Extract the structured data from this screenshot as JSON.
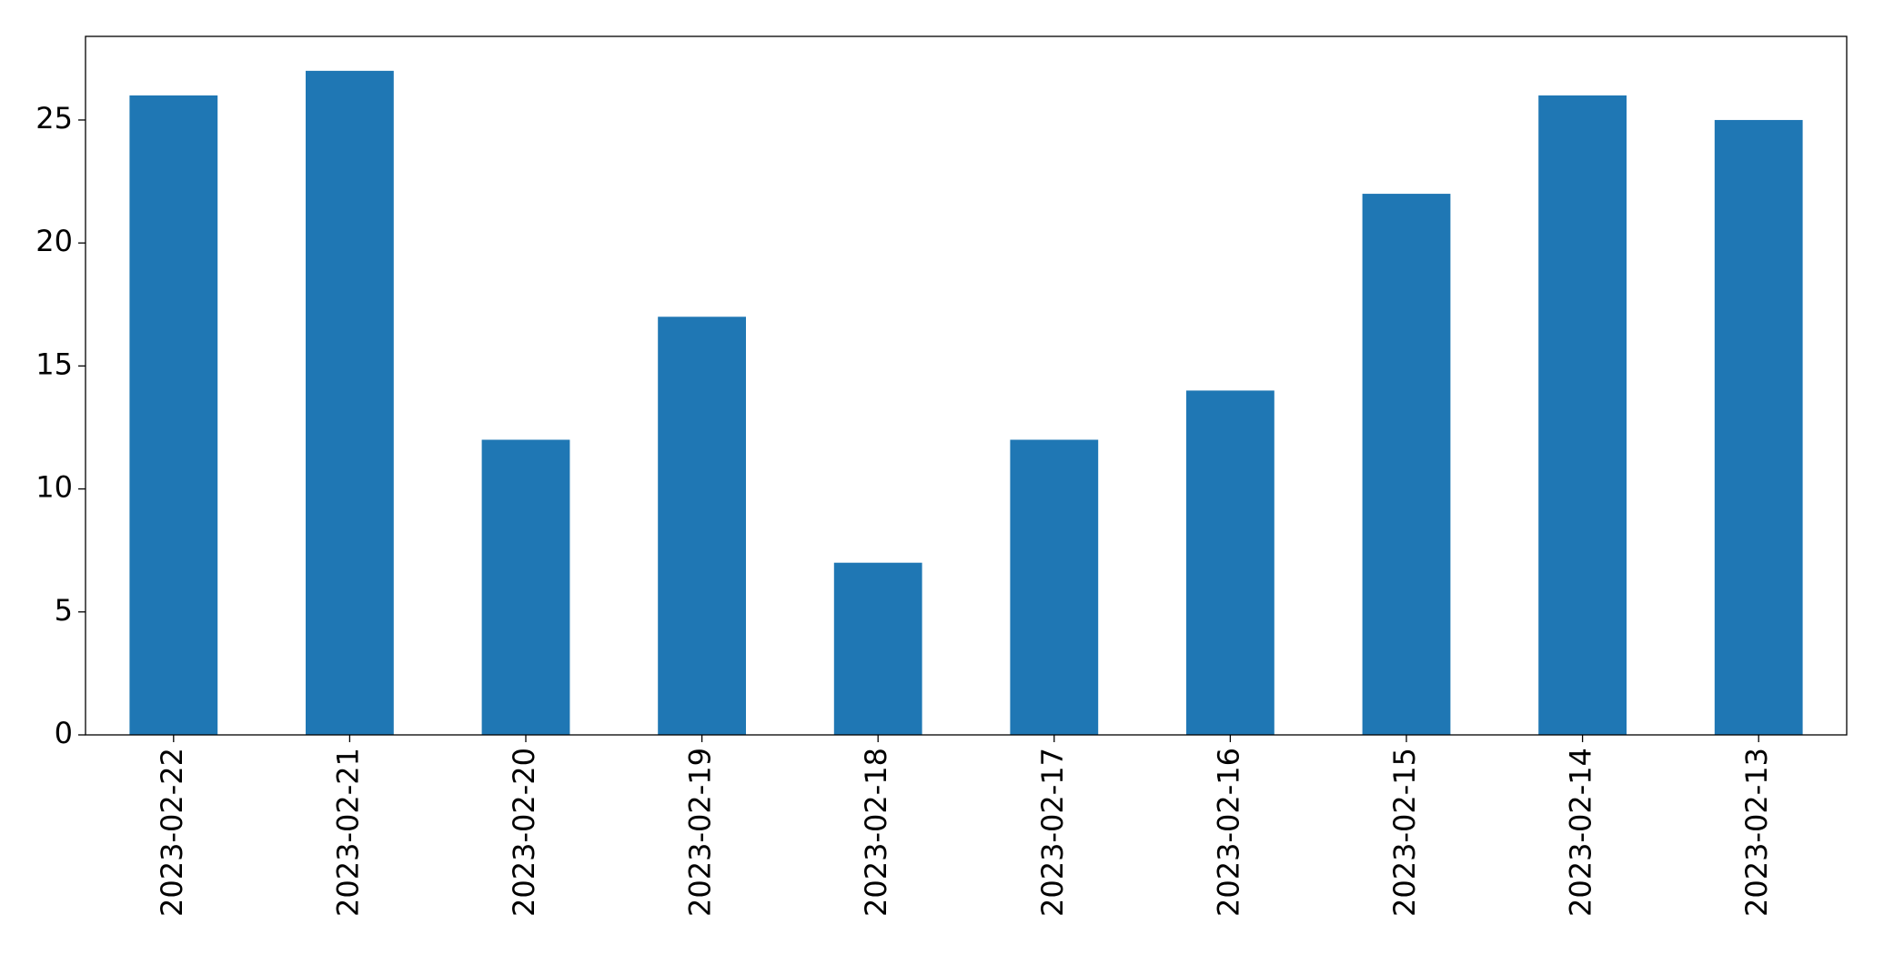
{
  "chart_data": {
    "type": "bar",
    "categories": [
      "2023-02-22",
      "2023-02-21",
      "2023-02-20",
      "2023-02-19",
      "2023-02-18",
      "2023-02-17",
      "2023-02-16",
      "2023-02-15",
      "2023-02-14",
      "2023-02-13"
    ],
    "values": [
      26,
      27,
      12,
      17,
      7,
      12,
      14,
      22,
      26,
      25
    ],
    "color": "#1f77b4",
    "ylim": [
      0,
      28.4
    ],
    "yticks": [
      0,
      5,
      10,
      15,
      20,
      25
    ],
    "grid": false
  }
}
